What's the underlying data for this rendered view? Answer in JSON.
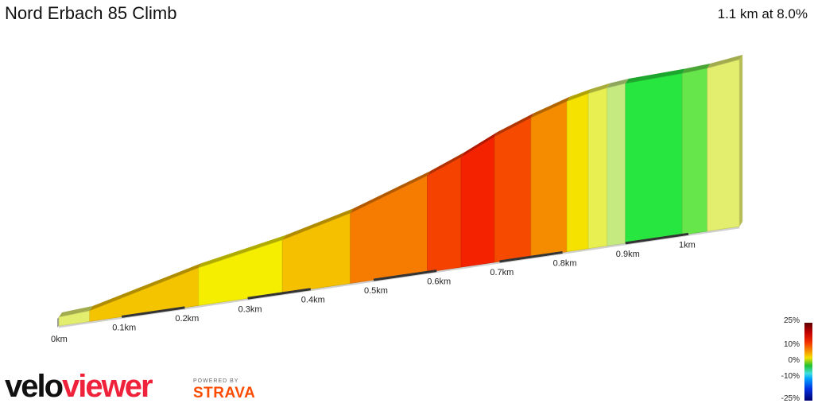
{
  "header": {
    "title": "Nord Erbach 85 Climb",
    "summary": "1.1 km at 8.0%"
  },
  "chart_data": {
    "type": "area",
    "title": "Nord Erbach 85 Climb",
    "xlabel": "",
    "ylabel": "",
    "x_unit": "km",
    "xlim": [
      0,
      1.08
    ],
    "tick_labels": [
      "0km",
      "0.1km",
      "0.2km",
      "0.3km",
      "0.4km",
      "0.5km",
      "0.6km",
      "0.7km",
      "0.8km",
      "0.9km",
      "1km"
    ],
    "segments": [
      {
        "start": 0.0,
        "end": 0.049,
        "gradient": 2,
        "color": "#e3ee6e"
      },
      {
        "start": 0.049,
        "end": 0.222,
        "gradient": 8,
        "color": "#f5c400"
      },
      {
        "start": 0.222,
        "end": 0.355,
        "gradient": 6,
        "color": "#f5ee00"
      },
      {
        "start": 0.355,
        "end": 0.463,
        "gradient": 8,
        "color": "#f5c000"
      },
      {
        "start": 0.463,
        "end": 0.585,
        "gradient": 11,
        "color": "#f57c00"
      },
      {
        "start": 0.585,
        "end": 0.639,
        "gradient": 13,
        "color": "#f54200"
      },
      {
        "start": 0.639,
        "end": 0.692,
        "gradient": 15,
        "color": "#f52200"
      },
      {
        "start": 0.692,
        "end": 0.75,
        "gradient": 12,
        "color": "#f54a00"
      },
      {
        "start": 0.75,
        "end": 0.807,
        "gradient": 10,
        "color": "#f58c00"
      },
      {
        "start": 0.807,
        "end": 0.841,
        "gradient": 7,
        "color": "#f5e200"
      },
      {
        "start": 0.841,
        "end": 0.871,
        "gradient": 5,
        "color": "#e8ef50"
      },
      {
        "start": 0.871,
        "end": 0.9,
        "gradient": 3,
        "color": "#c4ea80"
      },
      {
        "start": 0.9,
        "end": 0.99,
        "gradient": 1,
        "color": "#28e640"
      },
      {
        "start": 0.99,
        "end": 1.03,
        "gradient": 2,
        "color": "#66e64a"
      },
      {
        "start": 1.03,
        "end": 1.081,
        "gradient": 4,
        "color": "#e3ee6e"
      }
    ],
    "legend": {
      "labels": [
        "25%",
        "10%",
        "0%",
        "-10%",
        "-25%"
      ],
      "placement": "bottom-right"
    }
  },
  "branding": {
    "logo_part1": "velo",
    "logo_part2": "viewer",
    "powered": "POWERED BY",
    "strava": "STRAVA"
  }
}
